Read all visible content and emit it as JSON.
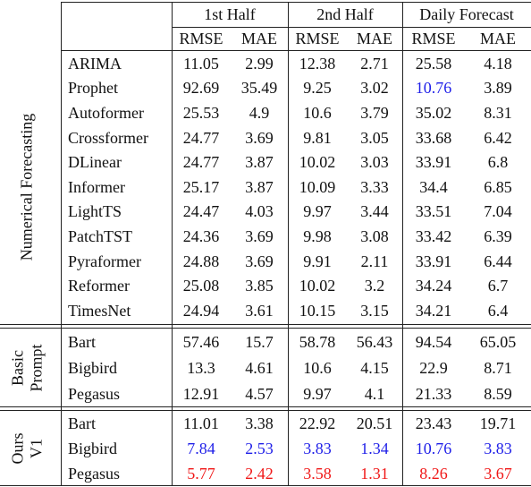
{
  "header": {
    "groups": [
      "1st Half",
      "2nd Half",
      "Daily Forecast"
    ],
    "metrics": [
      "RMSE",
      "MAE",
      "RMSE",
      "MAE",
      "RMSE",
      "MAE"
    ]
  },
  "sections": [
    {
      "label": [
        "Numerical Forecasting"
      ],
      "rows": [
        {
          "model": "ARIMA",
          "cells": [
            "11.05",
            "2.99",
            "12.38",
            "2.71",
            "25.58",
            "4.18"
          ]
        },
        {
          "model": "Prophet",
          "cells": [
            "92.69",
            "35.49",
            "9.25",
            "3.02",
            {
              "text": "10.76",
              "color": "#1f1fe8"
            },
            "3.89"
          ]
        },
        {
          "model": "Autoformer",
          "cells": [
            "25.53",
            "4.9",
            "10.6",
            "3.79",
            "35.02",
            "8.31"
          ]
        },
        {
          "model": "Crossformer",
          "cells": [
            "24.77",
            "3.69",
            "9.81",
            "3.05",
            "33.68",
            "6.42"
          ]
        },
        {
          "model": "DLinear",
          "cells": [
            "24.77",
            "3.87",
            "10.02",
            "3.03",
            "33.91",
            "6.8"
          ]
        },
        {
          "model": "Informer",
          "cells": [
            "25.17",
            "3.87",
            "10.09",
            "3.33",
            "34.4",
            "6.85"
          ]
        },
        {
          "model": "LightTS",
          "cells": [
            "24.47",
            "4.03",
            "9.97",
            "3.44",
            "33.51",
            "7.04"
          ]
        },
        {
          "model": "PatchTST",
          "cells": [
            "24.36",
            "3.69",
            "9.98",
            "3.08",
            "33.42",
            "6.39"
          ]
        },
        {
          "model": "Pyraformer",
          "cells": [
            "24.88",
            "3.69",
            "9.91",
            "2.11",
            "33.91",
            "6.44"
          ]
        },
        {
          "model": "Reformer",
          "cells": [
            "25.08",
            "3.85",
            "10.02",
            "3.2",
            "34.24",
            "6.7"
          ]
        },
        {
          "model": "TimesNet",
          "cells": [
            "24.94",
            "3.61",
            "10.15",
            "3.15",
            "34.21",
            "6.4"
          ]
        }
      ]
    },
    {
      "label": [
        "Basic",
        "Prompt"
      ],
      "rows": [
        {
          "model": "Bart",
          "cells": [
            "57.46",
            "15.7",
            "58.78",
            "56.43",
            "94.54",
            "65.05"
          ]
        },
        {
          "model": "Bigbird",
          "cells": [
            "13.3",
            "4.61",
            "10.6",
            "4.15",
            "22.9",
            "8.71"
          ]
        },
        {
          "model": "Pegasus",
          "cells": [
            "12.91",
            "4.57",
            "9.97",
            "4.1",
            "21.33",
            "8.59"
          ]
        }
      ]
    },
    {
      "label": [
        "Ours",
        "V1"
      ],
      "rows": [
        {
          "model": "Bart",
          "cells": [
            "11.01",
            "3.38",
            "22.92",
            "20.51",
            "23.43",
            "19.71"
          ]
        },
        {
          "model": "Bigbird",
          "cells": [
            {
              "text": "7.84",
              "color": "#1f1fe8"
            },
            {
              "text": "2.53",
              "color": "#1f1fe8"
            },
            {
              "text": "3.83",
              "color": "#1f1fe8"
            },
            {
              "text": "1.34",
              "color": "#1f1fe8"
            },
            {
              "text": "10.76",
              "color": "#1f1fe8"
            },
            {
              "text": "3.83",
              "color": "#1f1fe8"
            }
          ]
        },
        {
          "model": "Pegasus",
          "cells": [
            {
              "text": "5.77",
              "color": "#f01818"
            },
            {
              "text": "2.42",
              "color": "#f01818"
            },
            {
              "text": "3.58",
              "color": "#f01818"
            },
            {
              "text": "1.31",
              "color": "#f01818"
            },
            {
              "text": "8.26",
              "color": "#f01818"
            },
            {
              "text": "3.67",
              "color": "#f01818"
            }
          ]
        }
      ]
    }
  ]
}
